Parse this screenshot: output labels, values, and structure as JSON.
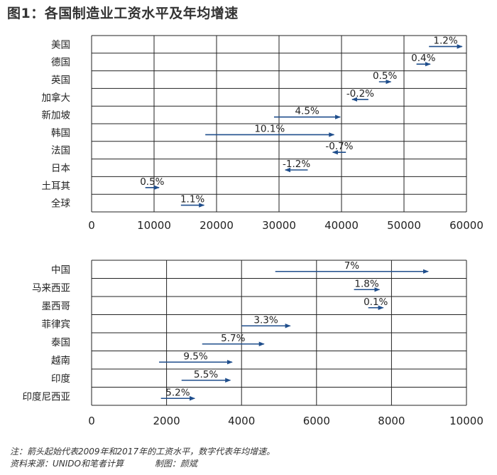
{
  "title": "图1：各国制造业工资水平及年均增速",
  "chart_data": [
    {
      "type": "arrow-range",
      "start_year": 2009,
      "end_year": 2017,
      "xlim": [
        0,
        60000
      ],
      "xticks": [
        "0",
        "10000",
        "20000",
        "30000",
        "40000",
        "50000",
        "60000"
      ],
      "xtick_values": [
        0,
        10000,
        20000,
        30000,
        40000,
        50000,
        60000
      ],
      "rows": [
        {
          "label": "美国",
          "start": 54000,
          "end": 59300,
          "rate": "1.2%"
        },
        {
          "label": "德国",
          "start": 52000,
          "end": 54200,
          "rate": "0.4%"
        },
        {
          "label": "英国",
          "start": 46000,
          "end": 47900,
          "rate": "0.5%"
        },
        {
          "label": "加拿大",
          "start": 44300,
          "end": 41700,
          "rate": "-0.2%"
        },
        {
          "label": "新加坡",
          "start": 29200,
          "end": 39800,
          "rate": "4.5%"
        },
        {
          "label": "韩国",
          "start": 18200,
          "end": 38800,
          "rate": "10.1%"
        },
        {
          "label": "法国",
          "start": 40700,
          "end": 38600,
          "rate": "-0.7%"
        },
        {
          "label": "日本",
          "start": 34600,
          "end": 31000,
          "rate": "-1.2%"
        },
        {
          "label": "土耳其",
          "start": 8600,
          "end": 10800,
          "rate": "0.5%"
        },
        {
          "label": "全球",
          "start": 14300,
          "end": 18000,
          "rate": "1.1%"
        }
      ]
    },
    {
      "type": "arrow-range",
      "start_year": 2009,
      "end_year": 2017,
      "xlim": [
        0,
        10000
      ],
      "xticks": [
        "0",
        "2000",
        "4000",
        "6000",
        "8000",
        "10000"
      ],
      "xtick_values": [
        0,
        2000,
        4000,
        6000,
        8000,
        10000
      ],
      "rows": [
        {
          "label": "中国",
          "start": 4900,
          "end": 8980,
          "rate": "7%"
        },
        {
          "label": "马来西亚",
          "start": 7000,
          "end": 7680,
          "rate": "1.8%"
        },
        {
          "label": "墨西哥",
          "start": 7380,
          "end": 7780,
          "rate": "0.1%"
        },
        {
          "label": "菲律宾",
          "start": 4000,
          "end": 5300,
          "rate": "3.3%"
        },
        {
          "label": "泰国",
          "start": 2950,
          "end": 4600,
          "rate": "5.7%"
        },
        {
          "label": "越南",
          "start": 1800,
          "end": 3750,
          "rate": "9.5%"
        },
        {
          "label": "印度",
          "start": 2400,
          "end": 3700,
          "rate": "5.5%"
        },
        {
          "label": "印度尼西亚",
          "start": 1850,
          "end": 2750,
          "rate": "5.2%"
        }
      ]
    }
  ],
  "note": "注：箭头起始代表2009年和2017年的工资水平，数字代表年均增速。",
  "source": "资料来源：UNIDO和笔者计算",
  "credit": "制图：颜斌",
  "colors": {
    "arrow": "#1f4e8c",
    "grid": "#222222",
    "text": "#222222"
  }
}
